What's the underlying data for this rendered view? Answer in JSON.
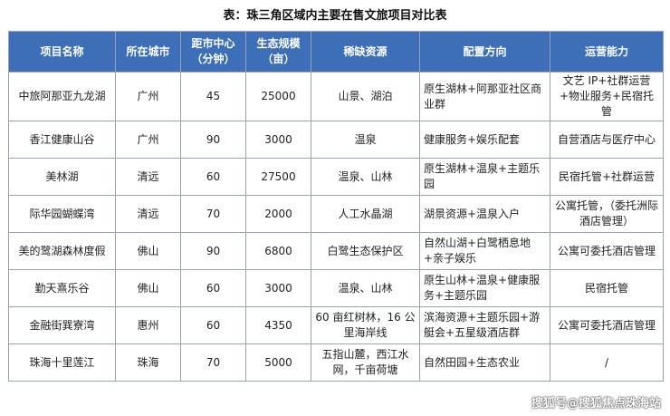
{
  "title": "表：珠三角区域内主要在售文旅项目对比表",
  "columns": [
    "项目名称",
    "所在城市",
    "距市中心（分钟）",
    "生态规模（亩）",
    "稀缺资源",
    "配置方向",
    "运营能力"
  ],
  "rows": [
    [
      "中旅阿那亚九龙湖",
      "广州",
      "45",
      "25000",
      "山景、湖泊",
      "原生湖林+阿那亚社区商业群",
      "文艺 IP+社群运营+物业服务+民宿托管"
    ],
    [
      "香江健康山谷",
      "广州",
      "90",
      "3000",
      "温泉",
      "健康服务+娱乐配套",
      "自营酒店与医疗中心"
    ],
    [
      "美林湖",
      "清远",
      "60",
      "27500",
      "温泉、山林",
      "原生湖林+温泉+主题乐园",
      "民宿托管+社群运营"
    ],
    [
      "际华园蝴蝶湾",
      "清远",
      "70",
      "2000",
      "人工水晶湖",
      "湖景资源+温泉入户",
      "公寓托管，（委托洲际酒店管理）"
    ],
    [
      "美的鹭湖森林度假",
      "佛山",
      "90",
      "6800",
      "白鹭生态保护区",
      "自然山湖+白鹭栖息地+亲子娱乐",
      "公寓可委托酒店管理"
    ],
    [
      "勤天熹乐谷",
      "佛山",
      "60",
      "3000",
      "温泉、山林",
      "原生山林+温泉+健康服务+主题乐园",
      "民宿托管"
    ],
    [
      "金融街巽寮湾",
      "惠州",
      "60",
      "4350",
      "60 亩红树林，16 公里海岸线",
      "滨海资源+主题乐园+游艇会+五星级酒店群",
      "公寓可委托酒店管理"
    ],
    [
      "珠海十里莲江",
      "珠海",
      "70",
      "5000",
      "五指山麓，西江水网，千亩荷塘",
      "自然田园+生态农业",
      "/"
    ]
  ],
  "watermark": "搜狐号@搜狐焦点珠海站"
}
